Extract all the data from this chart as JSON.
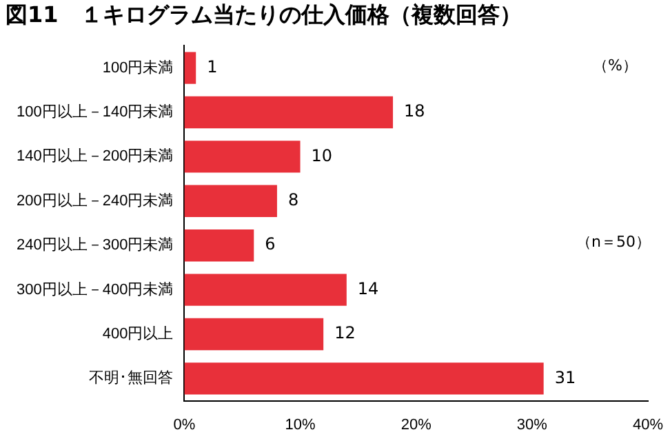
{
  "chart_data": {
    "type": "bar",
    "orientation": "horizontal",
    "title": "図11　１キログラム当たりの仕入価格（複数回答）",
    "categories": [
      "100円未満",
      "100円以上－140円未満",
      "140円以上－200円未満",
      "200円以上－240円未満",
      "240円以上－300円未満",
      "300円以上－400円未満",
      "400円以上",
      "不明･無回答"
    ],
    "values": [
      1,
      18,
      10,
      8,
      6,
      14,
      12,
      31
    ],
    "color": "#e8303a",
    "xlim": [
      0,
      40
    ],
    "xticks": [
      {
        "value": 0,
        "label": "0%"
      },
      {
        "value": 10,
        "label": "10%"
      },
      {
        "value": 20,
        "label": "20%"
      },
      {
        "value": 30,
        "label": "30%"
      },
      {
        "value": 40,
        "label": "40%"
      }
    ],
    "grid": false,
    "data_labels": true,
    "annotations": [
      "（%）",
      "（n＝50）"
    ]
  }
}
